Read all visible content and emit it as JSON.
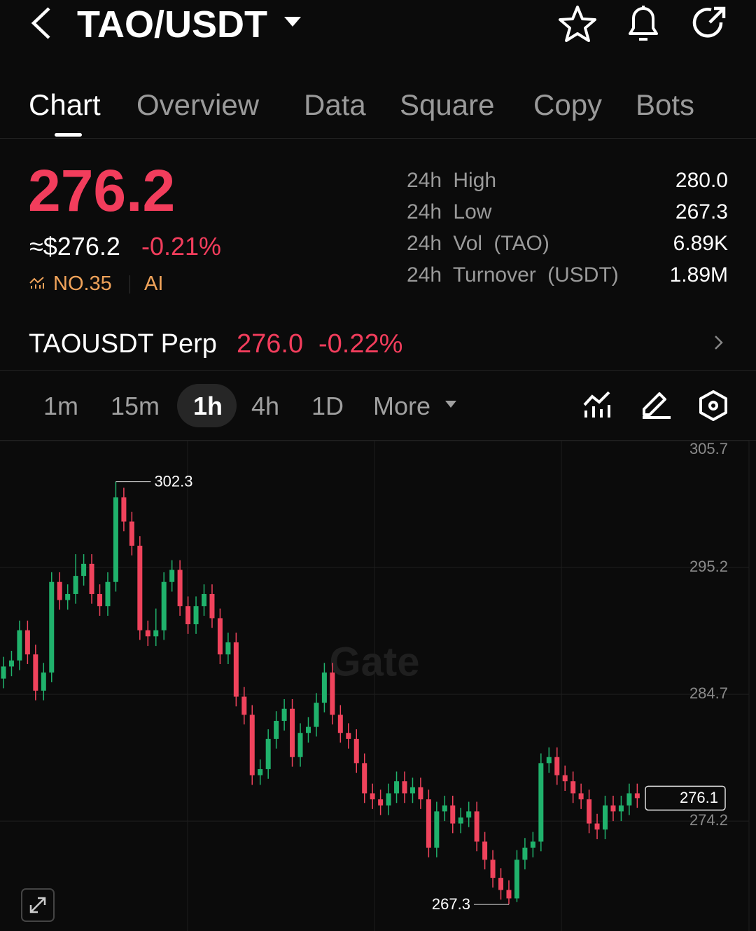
{
  "header": {
    "title": "TAO/USDT"
  },
  "tabs": [
    "Chart",
    "Overview",
    "Data",
    "Square",
    "Copy",
    "Bots"
  ],
  "price": {
    "last": "276.2",
    "usd": "≈$276.2",
    "change": "-0.21%",
    "rank": "NO.35",
    "tag": "AI"
  },
  "stats": [
    {
      "label": "24h High",
      "value": "280.0"
    },
    {
      "label": "24h Low",
      "value": "267.3"
    },
    {
      "label": "24h Vol (TAO)",
      "value": "6.89K"
    },
    {
      "label": "24h Turnover (USDT)",
      "value": "1.89M"
    }
  ],
  "perp": {
    "name": "TAOUSDT Perp",
    "price": "276.0",
    "change": "-0.22%"
  },
  "intervals": [
    "1m",
    "15m",
    "1h",
    "4h",
    "1D",
    "More"
  ],
  "chart": {
    "type": "candlestick",
    "watermark": "Gate",
    "ylim": [
      265.1,
      305.7
    ],
    "yticks": [
      274.2,
      284.7,
      295.2,
      305.7
    ],
    "grid": true,
    "up_color": "#20b26c",
    "down_color": "#f0435c",
    "candles": [
      [
        286,
        287.8,
        285.2,
        287
      ],
      [
        287,
        288.3,
        286.2,
        287.5
      ],
      [
        287.5,
        290.8,
        286.7,
        290
      ],
      [
        290,
        290.8,
        287.2,
        288
      ],
      [
        288,
        288.8,
        284.2,
        285
      ],
      [
        285,
        287.3,
        284.2,
        286.5
      ],
      [
        286.5,
        294.8,
        285.7,
        294
      ],
      [
        294,
        294.8,
        291.7,
        292.5
      ],
      [
        292.5,
        293.8,
        291.7,
        293
      ],
      [
        293,
        296.3,
        292.2,
        294.5
      ],
      [
        294.5,
        296.3,
        293.7,
        295.5
      ],
      [
        295.5,
        296.3,
        292.2,
        293
      ],
      [
        293,
        293.8,
        291.2,
        292
      ],
      [
        292,
        294.8,
        291.2,
        294
      ],
      [
        294,
        302.3,
        293.2,
        301
      ],
      [
        301,
        301.8,
        298.2,
        299
      ],
      [
        299,
        299.8,
        296.2,
        297
      ],
      [
        297,
        297.8,
        289.2,
        290
      ],
      [
        290,
        290.8,
        288.7,
        289.5
      ],
      [
        289.5,
        291.8,
        288.7,
        290
      ],
      [
        290,
        294.8,
        289.2,
        294
      ],
      [
        294,
        295.8,
        293.2,
        295
      ],
      [
        295,
        295.8,
        291.2,
        292
      ],
      [
        292,
        292.8,
        289.7,
        290.5
      ],
      [
        290.5,
        292.8,
        289.7,
        292
      ],
      [
        292,
        293.8,
        291.2,
        293
      ],
      [
        293,
        293.8,
        290.2,
        291
      ],
      [
        291,
        291.8,
        287.2,
        288
      ],
      [
        288,
        289.8,
        287.2,
        289
      ],
      [
        289,
        289.8,
        283.7,
        284.5
      ],
      [
        284.5,
        285.3,
        282.2,
        283
      ],
      [
        283,
        283.8,
        277.2,
        278
      ],
      [
        278,
        279.3,
        277.2,
        278.5
      ],
      [
        278.5,
        281.8,
        277.7,
        281
      ],
      [
        281,
        283.3,
        280.2,
        282.5
      ],
      [
        282.5,
        284.3,
        281.7,
        283.5
      ],
      [
        283.5,
        284.3,
        278.7,
        279.5
      ],
      [
        279.5,
        282.3,
        278.7,
        281.5
      ],
      [
        281.5,
        282.8,
        280.7,
        282
      ],
      [
        282,
        284.8,
        281.2,
        284
      ],
      [
        284,
        287.3,
        283.2,
        286.5
      ],
      [
        286.5,
        287.3,
        282.2,
        283
      ],
      [
        283,
        283.8,
        280.7,
        281.5
      ],
      [
        281.5,
        282.3,
        280.2,
        281
      ],
      [
        281,
        281.8,
        278.2,
        279
      ],
      [
        279,
        279.8,
        275.7,
        276.5
      ],
      [
        276.5,
        277.3,
        275.2,
        276
      ],
      [
        276,
        276.8,
        274.7,
        275.5
      ],
      [
        275.5,
        277.3,
        274.7,
        276.5
      ],
      [
        276.5,
        278.3,
        275.7,
        277.5
      ],
      [
        277.5,
        278.3,
        275.7,
        276.5
      ],
      [
        276.5,
        277.8,
        275.7,
        277
      ],
      [
        277,
        277.8,
        275.2,
        276
      ],
      [
        276,
        276.8,
        271.2,
        272
      ],
      [
        272,
        275.8,
        271.2,
        275
      ],
      [
        275,
        276.3,
        274.2,
        275.5
      ],
      [
        275.5,
        276.3,
        273.2,
        274
      ],
      [
        274,
        275.3,
        273.2,
        274.5
      ],
      [
        274.5,
        275.8,
        273.7,
        275
      ],
      [
        275,
        275.8,
        271.7,
        272.5
      ],
      [
        272.5,
        273.3,
        270.2,
        271
      ],
      [
        271,
        271.8,
        268.7,
        269.5
      ],
      [
        269.5,
        270.3,
        267.7,
        268.5
      ],
      [
        268.5,
        269.3,
        267.3,
        267.8
      ],
      [
        267.8,
        271.8,
        267.5,
        271
      ],
      [
        271,
        272.8,
        270.2,
        272
      ],
      [
        272,
        273.3,
        271.2,
        272.5
      ],
      [
        272.5,
        279.8,
        271.7,
        279
      ],
      [
        279,
        280.3,
        278.2,
        279.5
      ],
      [
        279.5,
        280.3,
        277.2,
        278
      ],
      [
        278,
        278.8,
        276.7,
        277.5
      ],
      [
        277.5,
        278.3,
        275.7,
        276.5
      ],
      [
        276.5,
        277.3,
        275.2,
        276
      ],
      [
        276,
        276.8,
        273.2,
        274
      ],
      [
        274,
        274.8,
        272.7,
        273.5
      ],
      [
        273.5,
        276.3,
        272.7,
        275.5
      ],
      [
        275.5,
        276.3,
        274.2,
        275
      ],
      [
        275,
        276.3,
        274.2,
        275.5
      ],
      [
        275.5,
        277.3,
        274.7,
        276.5
      ],
      [
        276.5,
        277.3,
        275.3,
        276.1
      ]
    ]
  }
}
